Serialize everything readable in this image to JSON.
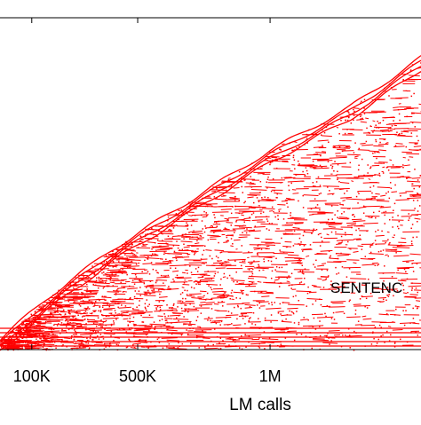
{
  "chart_data": {
    "type": "scatter",
    "xlabel": "LM calls",
    "ylabel": "",
    "title": "",
    "xticks": [
      {
        "label": "100K",
        "value": 100000
      },
      {
        "label": "500K",
        "value": 500000
      },
      {
        "label": "1M",
        "value": 1000000
      }
    ],
    "xlim": [
      -20000,
      1570000
    ],
    "ylim": [
      0,
      1
    ],
    "annotation": "SENTENC",
    "series": [
      {
        "color": "#ff0000",
        "description_points": "dense red point cloud bounded above by an increasing envelope",
        "envelope": [
          {
            "x": -20000,
            "y": 0.03
          },
          {
            "x": 150000,
            "y": 0.15
          },
          {
            "x": 400000,
            "y": 0.3
          },
          {
            "x": 700000,
            "y": 0.45
          },
          {
            "x": 1000000,
            "y": 0.6
          },
          {
            "x": 1300000,
            "y": 0.73
          },
          {
            "x": 1570000,
            "y": 0.88
          }
        ]
      }
    ],
    "grid": false
  }
}
